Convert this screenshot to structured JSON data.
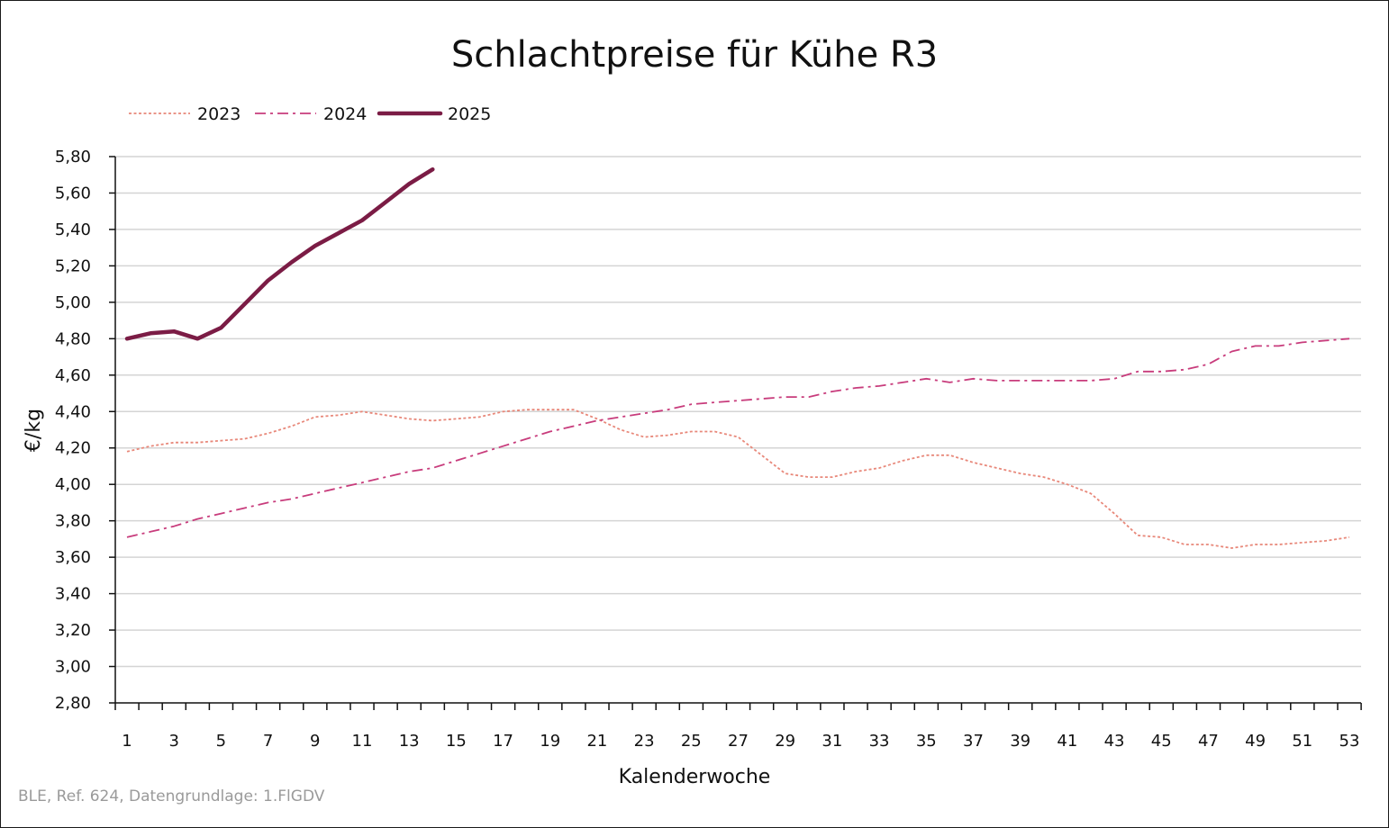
{
  "chart_data": {
    "type": "line",
    "title": "Schlachtpreise für Kühe R3",
    "xlabel": "Kalenderwoche",
    "ylabel": "€/kg",
    "xlim": [
      1,
      53
    ],
    "ylim": [
      2.8,
      5.8
    ],
    "ytick_step": 0.2,
    "xtick_labels": [
      "1",
      "3",
      "5",
      "7",
      "9",
      "11",
      "13",
      "15",
      "17",
      "19",
      "21",
      "23",
      "25",
      "27",
      "29",
      "31",
      "33",
      "35",
      "37",
      "39",
      "41",
      "43",
      "45",
      "47",
      "49",
      "51",
      "53"
    ],
    "ytick_labels": [
      "2,80",
      "3,00",
      "3,20",
      "3,40",
      "3,60",
      "3,80",
      "4,00",
      "4,20",
      "4,40",
      "4,60",
      "4,80",
      "5,00",
      "5,20",
      "5,40",
      "5,60",
      "5,80"
    ],
    "grid": true,
    "legend_position": "top-left",
    "source": "BLE, Ref. 624, Datengrundlage: 1.FlGDV",
    "series": [
      {
        "name": "2023",
        "color": "#e8887a",
        "style": "dotted",
        "x": [
          1,
          2,
          3,
          4,
          5,
          6,
          7,
          8,
          9,
          10,
          11,
          12,
          13,
          14,
          15,
          16,
          17,
          18,
          19,
          20,
          21,
          22,
          23,
          24,
          25,
          26,
          27,
          28,
          29,
          30,
          31,
          32,
          33,
          34,
          35,
          36,
          37,
          38,
          39,
          40,
          41,
          42,
          43,
          44,
          45,
          46,
          47,
          48,
          49,
          50,
          51,
          52,
          53
        ],
        "values": [
          4.18,
          4.21,
          4.23,
          4.23,
          4.24,
          4.25,
          4.28,
          4.32,
          4.37,
          4.38,
          4.4,
          4.38,
          4.36,
          4.35,
          4.36,
          4.37,
          4.4,
          4.41,
          4.41,
          4.41,
          4.36,
          4.3,
          4.26,
          4.27,
          4.29,
          4.29,
          4.26,
          4.16,
          4.06,
          4.04,
          4.04,
          4.07,
          4.09,
          4.13,
          4.16,
          4.16,
          4.12,
          4.09,
          4.06,
          4.04,
          4.0,
          3.95,
          3.84,
          3.72,
          3.71,
          3.67,
          3.67,
          3.65,
          3.67,
          3.67,
          3.68,
          3.69,
          3.71
        ]
      },
      {
        "name": "2024",
        "color": "#c83c7c",
        "style": "dashdot",
        "x": [
          1,
          2,
          3,
          4,
          5,
          6,
          7,
          8,
          9,
          10,
          11,
          12,
          13,
          14,
          15,
          16,
          17,
          18,
          19,
          20,
          21,
          22,
          23,
          24,
          25,
          26,
          27,
          28,
          29,
          30,
          31,
          32,
          33,
          34,
          35,
          36,
          37,
          38,
          39,
          40,
          41,
          42,
          43,
          44,
          45,
          46,
          47,
          48,
          49,
          50,
          51,
          52,
          53
        ],
        "values": [
          3.71,
          3.74,
          3.77,
          3.81,
          3.84,
          3.87,
          3.9,
          3.92,
          3.95,
          3.98,
          4.01,
          4.04,
          4.07,
          4.09,
          4.13,
          4.17,
          4.21,
          4.25,
          4.29,
          4.32,
          4.35,
          4.37,
          4.39,
          4.41,
          4.44,
          4.45,
          4.46,
          4.47,
          4.48,
          4.48,
          4.51,
          4.53,
          4.54,
          4.56,
          4.58,
          4.56,
          4.58,
          4.57,
          4.57,
          4.57,
          4.57,
          4.57,
          4.58,
          4.62,
          4.62,
          4.63,
          4.66,
          4.73,
          4.76,
          4.76,
          4.78,
          4.79,
          4.8
        ]
      },
      {
        "name": "2025",
        "color": "#7b1c45",
        "style": "solid",
        "x": [
          1,
          2,
          3,
          4,
          5,
          6,
          7,
          8,
          9,
          10,
          11,
          12,
          13,
          14
        ],
        "values": [
          4.8,
          4.83,
          4.84,
          4.8,
          4.86,
          4.99,
          5.12,
          5.22,
          5.31,
          5.38,
          5.45,
          5.55,
          5.65,
          5.73
        ]
      }
    ]
  }
}
